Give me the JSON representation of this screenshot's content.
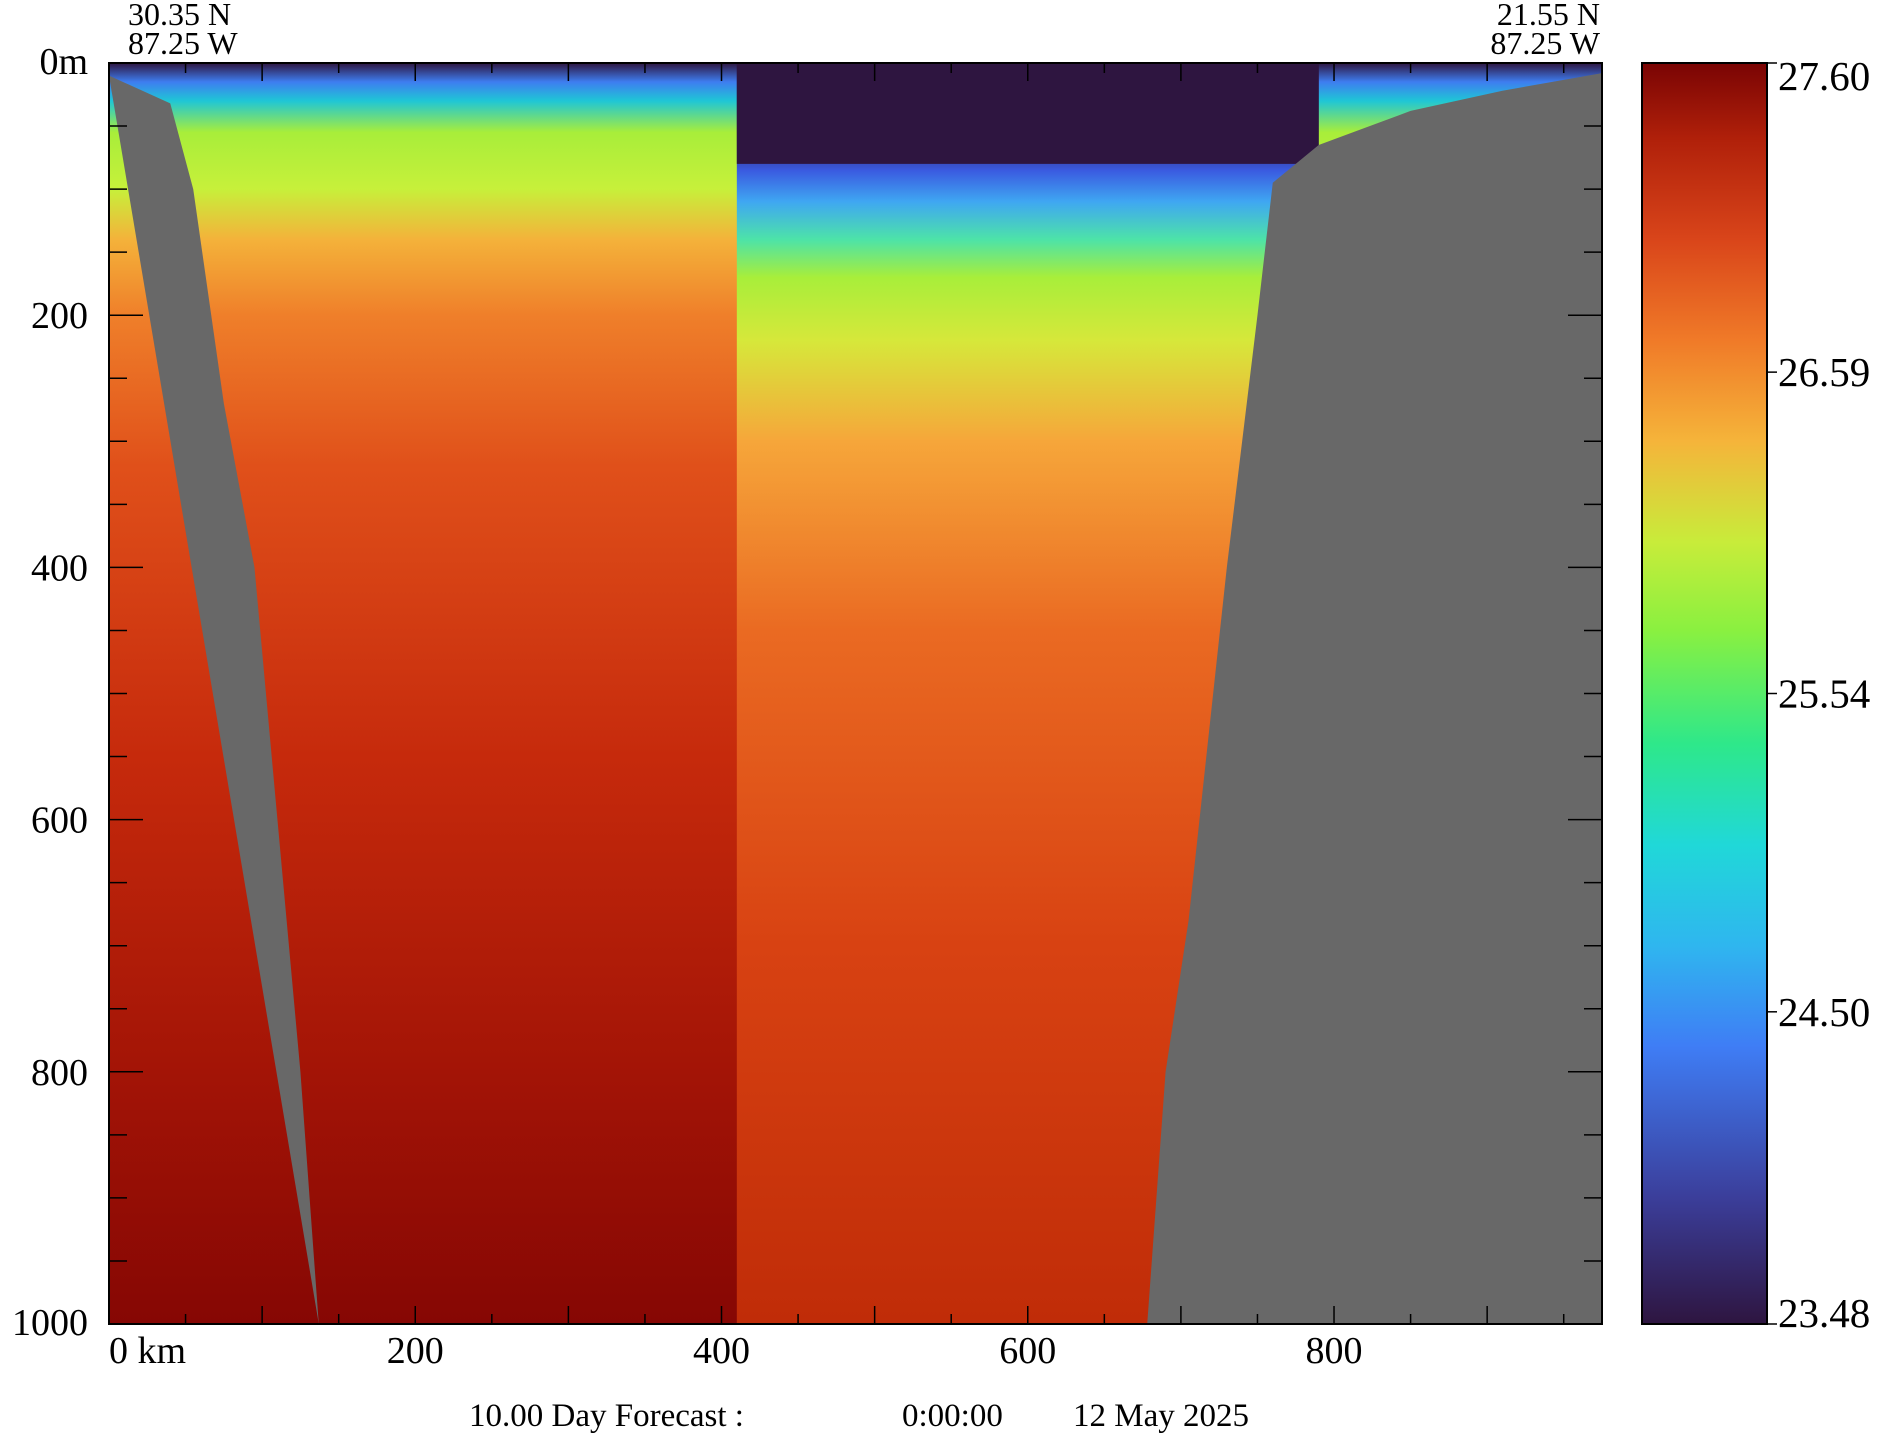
{
  "chart_data": {
    "type": "heatmap",
    "title": "",
    "xlabel": "",
    "ylabel": "",
    "x_unit": "km",
    "y_unit": "m",
    "xlim": [
      0,
      975
    ],
    "ylim": [
      0,
      1000
    ],
    "x_ticks": [
      0,
      200,
      400,
      600,
      800
    ],
    "x_tick_labels": [
      "0 km",
      "200",
      "400",
      "600",
      "800"
    ],
    "y_ticks": [
      0,
      200,
      400,
      600,
      800,
      1000
    ],
    "y_tick_labels": [
      "0m",
      "200",
      "400",
      "600",
      "800",
      "1000"
    ],
    "start_point": {
      "lat": "30.35 N",
      "lon": "87.25 W"
    },
    "end_point": {
      "lat": "21.55 N",
      "lon": "87.25 W"
    },
    "colorbar": {
      "min": 23.48,
      "max": 27.6,
      "tick_values": [
        27.6,
        26.59,
        25.54,
        24.5,
        23.48
      ],
      "tick_labels": [
        "27.60",
        "26.59",
        "25.54",
        "24.50",
        "23.48"
      ]
    },
    "land_color": "#686868",
    "footer": {
      "forecast": "10.00 Day Forecast :",
      "time": "0:00:00",
      "date": "12 May 2025"
    },
    "bathymetry_left": [
      [
        0,
        10
      ],
      [
        40,
        32
      ],
      [
        55,
        100
      ],
      [
        75,
        270
      ],
      [
        95,
        400
      ],
      [
        110,
        600
      ],
      [
        125,
        800
      ],
      [
        137,
        1000
      ]
    ],
    "bathymetry_right": [
      [
        678,
        1000
      ],
      [
        690,
        800
      ],
      [
        705,
        680
      ],
      [
        730,
        400
      ],
      [
        750,
        200
      ],
      [
        760,
        95
      ],
      [
        790,
        65
      ],
      [
        850,
        38
      ],
      [
        910,
        22
      ],
      [
        975,
        8
      ]
    ],
    "features": [
      {
        "name": "surface-cold-pool",
        "x_range": [
          410,
          790
        ],
        "depth_range": [
          0,
          80
        ],
        "value": 23.48
      },
      {
        "name": "thermocline-green-band",
        "depth_range": [
          60,
          200
        ],
        "value": 25.54
      },
      {
        "name": "deep-warm-core",
        "x_range": [
          140,
          680
        ],
        "depth_range": [
          400,
          1000
        ],
        "value": 27.6
      }
    ]
  }
}
